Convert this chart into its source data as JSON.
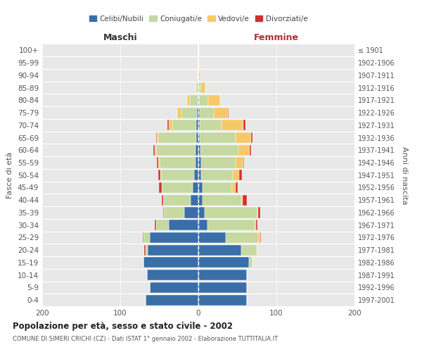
{
  "age_groups": [
    "0-4",
    "5-9",
    "10-14",
    "15-19",
    "20-24",
    "25-29",
    "30-34",
    "35-39",
    "40-44",
    "45-49",
    "50-54",
    "55-59",
    "60-64",
    "65-69",
    "70-74",
    "75-79",
    "80-84",
    "85-89",
    "90-94",
    "95-99",
    "100+"
  ],
  "birth_years": [
    "1997-2001",
    "1992-1996",
    "1987-1991",
    "1982-1986",
    "1977-1981",
    "1972-1976",
    "1967-1971",
    "1962-1966",
    "1957-1961",
    "1952-1956",
    "1947-1951",
    "1942-1946",
    "1937-1941",
    "1932-1936",
    "1927-1931",
    "1922-1926",
    "1917-1921",
    "1912-1916",
    "1907-1911",
    "1902-1906",
    "≤ 1901"
  ],
  "males_celibi": [
    68,
    62,
    66,
    70,
    65,
    62,
    38,
    18,
    10,
    7,
    5,
    4,
    4,
    3,
    3,
    2,
    1,
    0,
    0,
    0,
    0
  ],
  "males_coniugati": [
    0,
    0,
    0,
    0,
    3,
    8,
    16,
    26,
    35,
    40,
    43,
    46,
    50,
    48,
    30,
    20,
    10,
    3,
    1,
    0,
    0
  ],
  "males_vedovi": [
    0,
    0,
    0,
    0,
    0,
    0,
    0,
    0,
    0,
    0,
    1,
    1,
    2,
    2,
    5,
    5,
    3,
    1,
    0,
    0,
    0
  ],
  "males_divorziati": [
    0,
    0,
    0,
    0,
    1,
    1,
    2,
    1,
    2,
    3,
    2,
    2,
    2,
    1,
    2,
    0,
    0,
    0,
    0,
    0,
    0
  ],
  "females_nubili": [
    62,
    62,
    62,
    65,
    55,
    35,
    12,
    8,
    5,
    5,
    4,
    4,
    3,
    2,
    2,
    2,
    1,
    0,
    0,
    0,
    0
  ],
  "females_coniugate": [
    0,
    0,
    0,
    4,
    20,
    42,
    60,
    68,
    50,
    38,
    40,
    44,
    48,
    46,
    28,
    18,
    12,
    4,
    1,
    0,
    0
  ],
  "females_vedove": [
    0,
    0,
    0,
    0,
    1,
    2,
    2,
    1,
    2,
    5,
    8,
    10,
    15,
    20,
    28,
    18,
    15,
    5,
    2,
    0,
    0
  ],
  "females_divorziate": [
    0,
    0,
    0,
    0,
    0,
    1,
    2,
    2,
    5,
    2,
    4,
    1,
    2,
    1,
    2,
    1,
    0,
    0,
    0,
    0,
    0
  ],
  "color_celibi": "#3a6ea8",
  "color_coniugati": "#c5d9a0",
  "color_vedovi": "#f5c96a",
  "color_divorziati": "#d43030",
  "legend_labels": [
    "Celibi/Nubili",
    "Coniugati/e",
    "Vedovi/e",
    "Divorziati/e"
  ],
  "title": "Popolazione per età, sesso e stato civile - 2002",
  "subtitle": "COMUNE DI SIMERI CRICHI (CZ) - Dati ISTAT 1° gennaio 2002 - Elaborazione TUTTITALIA.IT",
  "label_maschi": "Maschi",
  "label_femmine": "Femmine",
  "ylabel_left": "Fasce di età",
  "ylabel_right": "Anni di nascita",
  "xlim": 200,
  "bg_color": "#ffffff",
  "plot_bg": "#e8e8e8",
  "grid_color": "#ffffff",
  "bar_height": 0.85
}
